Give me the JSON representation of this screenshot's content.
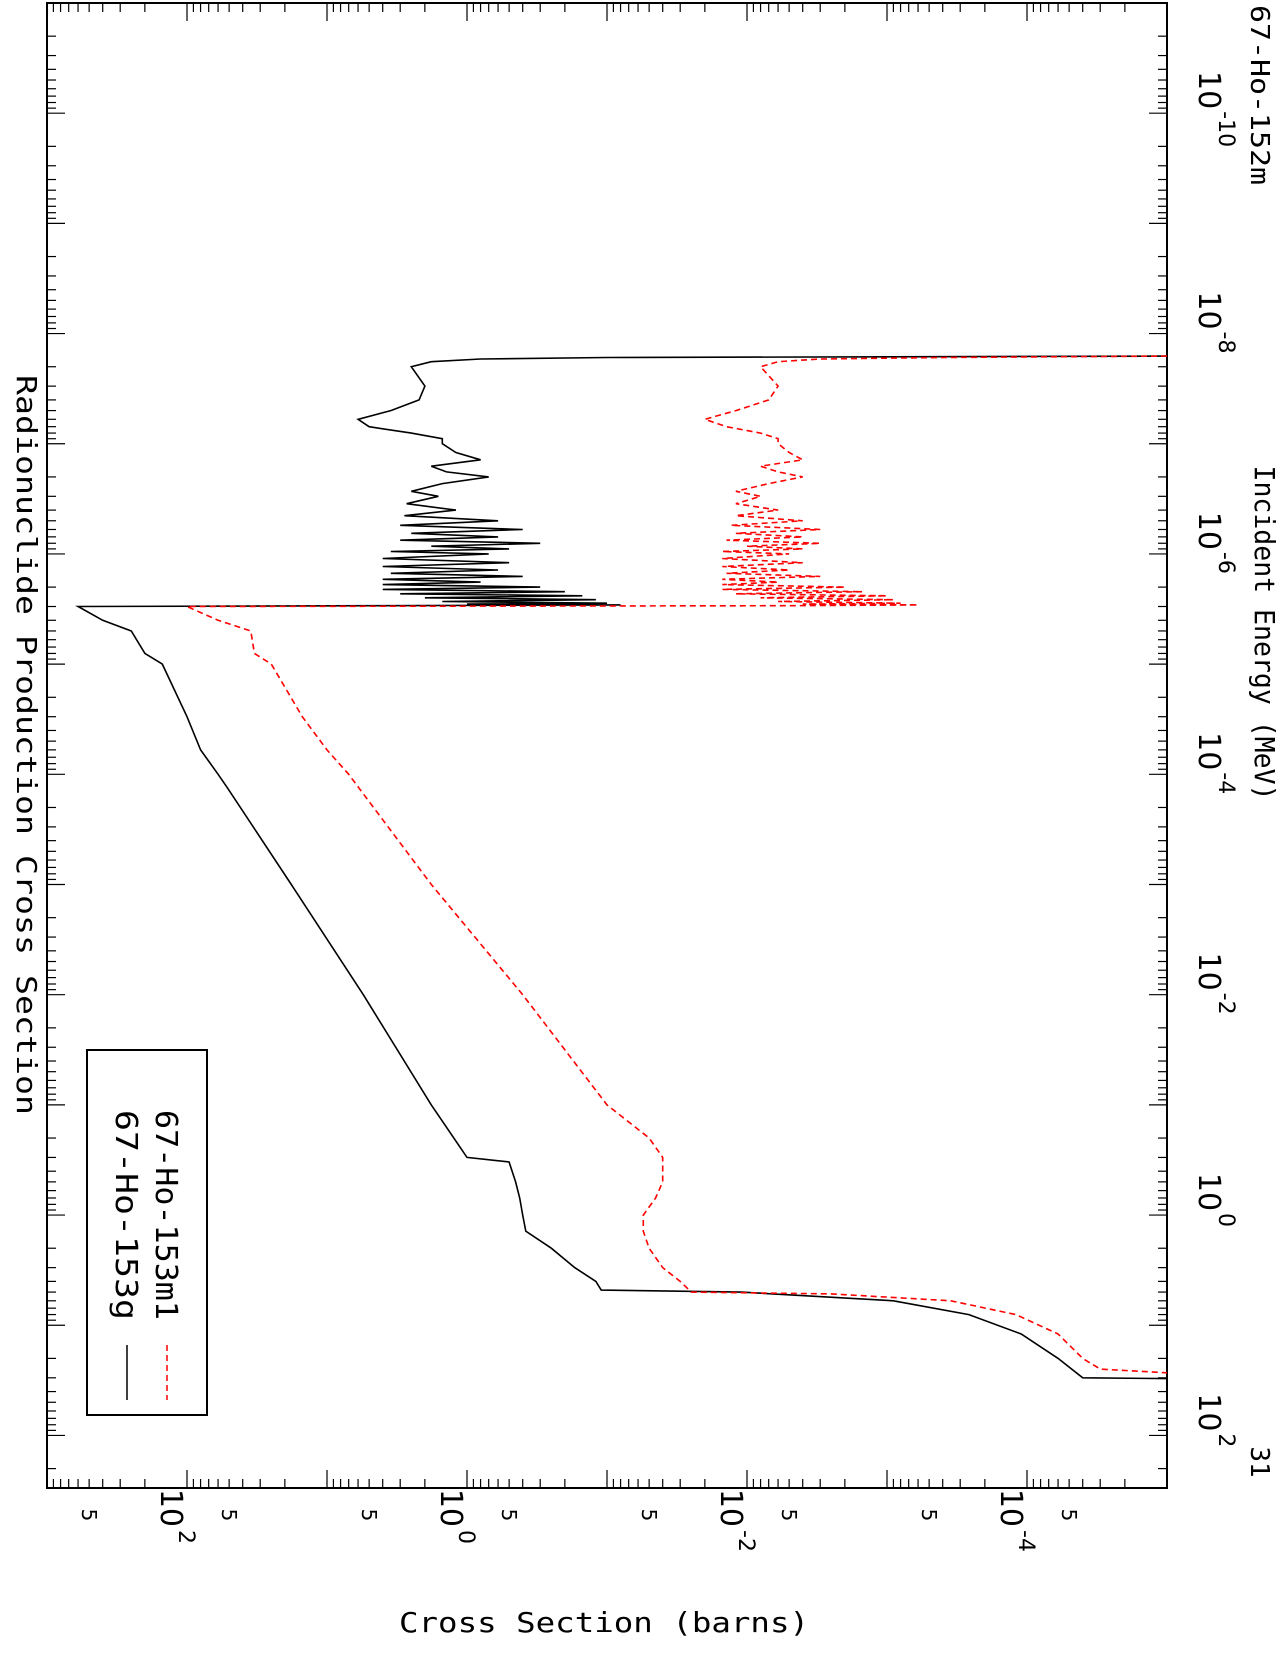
{
  "page_label_top": "67-Ho-152m",
  "page_label_bottom": "31",
  "chart_data": {
    "type": "line",
    "title": "Radionuclide Production Cross Section",
    "xlabel": "Incident Energy (MeV)",
    "ylabel": "Cross Section (barns)",
    "xscale": "log",
    "yscale": "log",
    "xlim": [
      1e-11,
      300
    ],
    "ylim": [
      1e-05,
      1000
    ],
    "grid": false,
    "legend_position": "top-left",
    "x_tick_labels": [
      {
        "base": "10",
        "exp": "-10",
        "value": 1e-10
      },
      {
        "base": "10",
        "exp": "-8",
        "value": 1e-08
      },
      {
        "base": "10",
        "exp": "-6",
        "value": 1e-06
      },
      {
        "base": "10",
        "exp": "-4",
        "value": 0.0001
      },
      {
        "base": "10",
        "exp": "-2",
        "value": 0.01
      },
      {
        "base": "10",
        "exp": "0",
        "value": 1
      },
      {
        "base": "10",
        "exp": "2",
        "value": 100
      }
    ],
    "y_tick_labels": [
      {
        "base": "10",
        "exp": "-4",
        "value": 0.0001
      },
      {
        "base": "10",
        "exp": "-2",
        "value": 0.01
      },
      {
        "base": "10",
        "exp": "0",
        "value": 1
      },
      {
        "base": "10",
        "exp": "2",
        "value": 100
      }
    ],
    "y_minor_label": "5",
    "y_minor_label_values": [
      5e-05,
      0.0005,
      0.005,
      0.05,
      0.5,
      5,
      50,
      500
    ],
    "series": [
      {
        "name": "67-Ho-153g",
        "color": "#000000",
        "dash": "solid",
        "points": [
          [
            1.6e-08,
            1e-05
          ],
          [
            1.65e-08,
            0.1
          ],
          [
            1.7e-08,
            0.8
          ],
          [
            1.8e-08,
            1.8
          ],
          [
            2e-08,
            2.5
          ],
          [
            3e-08,
            2.0
          ],
          [
            4e-08,
            2.2
          ],
          [
            5e-08,
            3.5
          ],
          [
            6e-08,
            6.0
          ],
          [
            7e-08,
            5.0
          ],
          [
            8e-08,
            2.5
          ],
          [
            9e-08,
            1.5
          ],
          [
            1e-07,
            1.5
          ],
          [
            1.2e-07,
            1.2
          ],
          [
            1.4e-07,
            0.8
          ],
          [
            1.6e-07,
            1.8
          ],
          [
            1.8e-07,
            1.4
          ],
          [
            2e-07,
            0.7
          ],
          [
            2.3e-07,
            1.5
          ],
          [
            2.7e-07,
            2.5
          ],
          [
            3e-07,
            1.6
          ],
          [
            3.5e-07,
            2.7
          ],
          [
            4e-07,
            1.2
          ],
          [
            4.5e-07,
            2.8
          ],
          [
            5e-07,
            0.6
          ],
          [
            5.5e-07,
            3.0
          ],
          [
            6e-07,
            0.4
          ],
          [
            6.5e-07,
            2.5
          ],
          [
            7e-07,
            0.6
          ],
          [
            7.5e-07,
            3.0
          ],
          [
            8e-07,
            0.3
          ],
          [
            8.5e-07,
            1.8
          ],
          [
            9e-07,
            0.5
          ],
          [
            9.5e-07,
            3.5
          ],
          [
            1e-06,
            0.7
          ],
          [
            1.1e-06,
            4.0
          ],
          [
            1.2e-06,
            0.5
          ],
          [
            1.3e-06,
            4.0
          ],
          [
            1.4e-06,
            0.6
          ],
          [
            1.5e-06,
            3.5
          ],
          [
            1.6e-06,
            0.4
          ],
          [
            1.7e-06,
            4.0
          ],
          [
            1.8e-06,
            0.8
          ],
          [
            1.9e-06,
            4.0
          ],
          [
            2e-06,
            0.3
          ],
          [
            2.1e-06,
            4.0
          ],
          [
            2.2e-06,
            0.2
          ],
          [
            2.3e-06,
            3.0
          ],
          [
            2.4e-06,
            0.15
          ],
          [
            2.5e-06,
            2.0
          ],
          [
            2.6e-06,
            0.12
          ],
          [
            2.7e-06,
            1.5
          ],
          [
            2.8e-06,
            0.1
          ],
          [
            2.85e-06,
            1.0
          ],
          [
            2.9e-06,
            0.08
          ],
          [
            2.95e-06,
            5.0
          ],
          [
            3e-06,
            600
          ],
          [
            4e-06,
            400
          ],
          [
            5e-06,
            250
          ],
          [
            8e-06,
            200
          ],
          [
            1e-05,
            150
          ],
          [
            3e-05,
            100
          ],
          [
            6e-05,
            80
          ],
          [
            0.0001,
            60
          ],
          [
            0.00013,
            52
          ],
          [
            0.001,
            18
          ],
          [
            0.01,
            5.5
          ],
          [
            0.1,
            1.8
          ],
          [
            0.3,
            1.0
          ],
          [
            0.33,
            0.5
          ],
          [
            0.5,
            0.45
          ],
          [
            0.7,
            0.42
          ],
          [
            1.0,
            0.4
          ],
          [
            1.4,
            0.38
          ],
          [
            2.0,
            0.25
          ],
          [
            3.0,
            0.17
          ],
          [
            4.0,
            0.12
          ],
          [
            4.8,
            0.11
          ],
          [
            5.0,
            0.011
          ],
          [
            6.0,
            0.0009
          ],
          [
            8.0,
            0.00026
          ],
          [
            12.0,
            0.00011
          ],
          [
            20.0,
            6e-05
          ],
          [
            30.0,
            4e-05
          ],
          [
            30.5,
            1e-05
          ]
        ]
      },
      {
        "name": "67-Ho-153m1",
        "color": "#ff0000",
        "dash": "dashed",
        "points": [
          [
            1.6e-08,
            1e-05
          ],
          [
            1.65e-08,
            0.0004
          ],
          [
            1.7e-08,
            0.003
          ],
          [
            1.8e-08,
            0.006
          ],
          [
            2e-08,
            0.008
          ],
          [
            3e-08,
            0.006
          ],
          [
            4e-08,
            0.007
          ],
          [
            5e-08,
            0.012
          ],
          [
            6e-08,
            0.02
          ],
          [
            7e-08,
            0.014
          ],
          [
            8e-08,
            0.008
          ],
          [
            9e-08,
            0.006
          ],
          [
            1e-07,
            0.006
          ],
          [
            1.2e-07,
            0.005
          ],
          [
            1.4e-07,
            0.004
          ],
          [
            1.6e-07,
            0.008
          ],
          [
            1.8e-07,
            0.006
          ],
          [
            2e-07,
            0.004
          ],
          [
            2.3e-07,
            0.007
          ],
          [
            2.7e-07,
            0.012
          ],
          [
            3e-07,
            0.008
          ],
          [
            3.5e-07,
            0.012
          ],
          [
            4e-07,
            0.006
          ],
          [
            4.5e-07,
            0.012
          ],
          [
            5e-07,
            0.004
          ],
          [
            5.5e-07,
            0.013
          ],
          [
            6e-07,
            0.003
          ],
          [
            6.5e-07,
            0.012
          ],
          [
            7e-07,
            0.004
          ],
          [
            7.5e-07,
            0.014
          ],
          [
            8e-07,
            0.003
          ],
          [
            8.5e-07,
            0.01
          ],
          [
            9e-07,
            0.004
          ],
          [
            9.5e-07,
            0.015
          ],
          [
            1e-06,
            0.005
          ],
          [
            1.1e-06,
            0.015
          ],
          [
            1.2e-06,
            0.004
          ],
          [
            1.3e-06,
            0.015
          ],
          [
            1.4e-06,
            0.005
          ],
          [
            1.5e-06,
            0.014
          ],
          [
            1.6e-06,
            0.003
          ],
          [
            1.7e-06,
            0.015
          ],
          [
            1.8e-06,
            0.006
          ],
          [
            1.9e-06,
            0.015
          ],
          [
            2e-06,
            0.002
          ],
          [
            2.1e-06,
            0.015
          ],
          [
            2.2e-06,
            0.0015
          ],
          [
            2.3e-06,
            0.012
          ],
          [
            2.4e-06,
            0.001
          ],
          [
            2.5e-06,
            0.008
          ],
          [
            2.6e-06,
            0.0009
          ],
          [
            2.7e-06,
            0.006
          ],
          [
            2.8e-06,
            0.0008
          ],
          [
            2.85e-06,
            0.004
          ],
          [
            2.9e-06,
            0.0006
          ],
          [
            2.95e-06,
            0.005
          ],
          [
            3e-06,
            100
          ],
          [
            4e-06,
            60
          ],
          [
            5e-06,
            35
          ],
          [
            8e-06,
            33
          ],
          [
            1e-05,
            25
          ],
          [
            3e-05,
            15
          ],
          [
            6e-05,
            10
          ],
          [
            0.0001,
            7
          ],
          [
            0.00013,
            6
          ],
          [
            0.001,
            1.8
          ],
          [
            0.01,
            0.4
          ],
          [
            0.1,
            0.1
          ],
          [
            0.2,
            0.05
          ],
          [
            0.3,
            0.04
          ],
          [
            0.5,
            0.04
          ],
          [
            0.7,
            0.045
          ],
          [
            1.0,
            0.055
          ],
          [
            1.4,
            0.055
          ],
          [
            2.0,
            0.05
          ],
          [
            3.0,
            0.04
          ],
          [
            4.0,
            0.03
          ],
          [
            5.0,
            0.025
          ],
          [
            5.2,
            0.0025
          ],
          [
            6.0,
            0.00035
          ],
          [
            8.0,
            0.00012
          ],
          [
            12.0,
            6e-05
          ],
          [
            20.0,
            4e-05
          ],
          [
            25.0,
            3e-05
          ],
          [
            27.0,
            1e-05
          ]
        ]
      }
    ]
  }
}
